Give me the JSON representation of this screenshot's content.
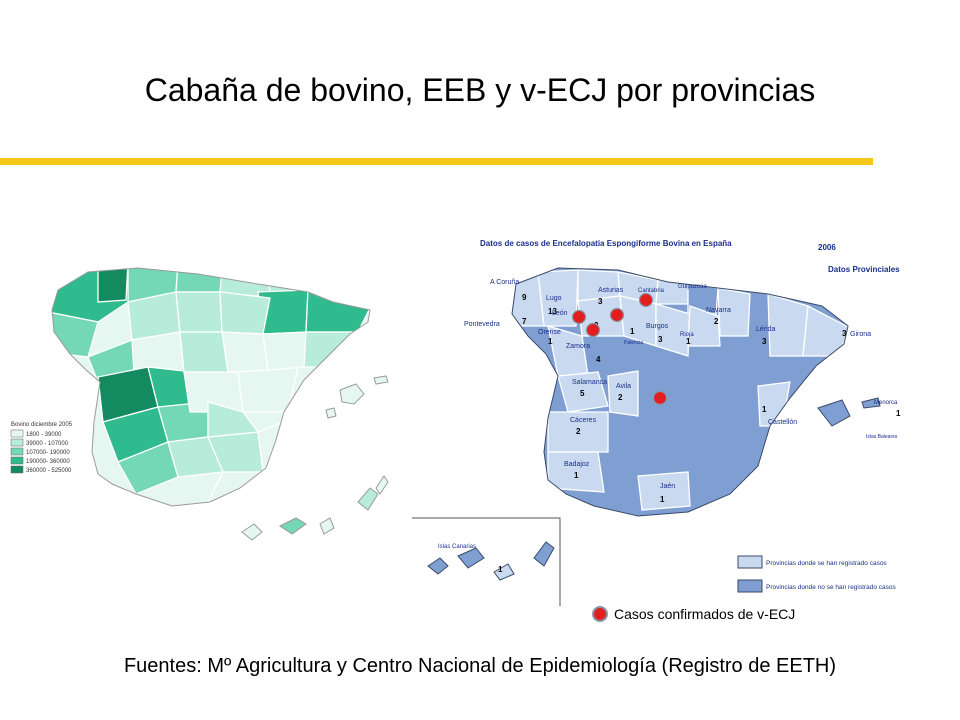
{
  "title": "Cabaña de bovino, EEB y v-ECJ por provincias",
  "left_map": {
    "legend_title": "Bovino diciembre 2005",
    "legend": [
      {
        "label": "1800 - 39000",
        "color": "#e6f7f1"
      },
      {
        "label": "39000 - 107000",
        "color": "#b6ecd9"
      },
      {
        "label": "107000- 190000",
        "color": "#74d8b6"
      },
      {
        "label": "190000- 360000",
        "color": "#2fbb8d"
      },
      {
        "label": "360000 - 525000",
        "color": "#138a60"
      }
    ]
  },
  "right_map": {
    "title": "Datos de casos de Encefalopatia Espongiforme Bovina en España",
    "year": "2006",
    "subtitle": "Datos Provinciales",
    "colors": {
      "with_cases": "#c9daf0",
      "without_cases": "#7f9fd3"
    },
    "labels": [
      {
        "text": "A Coruña"
      },
      {
        "text": "9"
      },
      {
        "text": "Lugo"
      },
      {
        "text": "13"
      },
      {
        "text": "Asturias"
      },
      {
        "text": "3"
      },
      {
        "text": "Cantabria"
      },
      {
        "text": "Guipuzcoa"
      },
      {
        "text": "Navarra"
      },
      {
        "text": "2"
      },
      {
        "text": "7"
      },
      {
        "text": "Pontevedra"
      },
      {
        "text": "León"
      },
      {
        "text": "2"
      },
      {
        "text": "Orense"
      },
      {
        "text": "1"
      },
      {
        "text": "Burgos"
      },
      {
        "text": "1"
      },
      {
        "text": "3"
      },
      {
        "text": "Palencia"
      },
      {
        "text": "Rioja"
      },
      {
        "text": "1"
      },
      {
        "text": "Lérida"
      },
      {
        "text": "3"
      },
      {
        "text": "3"
      },
      {
        "text": "Girona"
      },
      {
        "text": "Zamora"
      },
      {
        "text": "4"
      },
      {
        "text": "Salamanca"
      },
      {
        "text": "5"
      },
      {
        "text": "Avila"
      },
      {
        "text": "2"
      },
      {
        "text": "1"
      },
      {
        "text": "Castellón"
      },
      {
        "text": "Menorca"
      },
      {
        "text": "1"
      },
      {
        "text": "Islas Baleares"
      },
      {
        "text": "Cáceres"
      },
      {
        "text": "2"
      },
      {
        "text": "Badajoz"
      },
      {
        "text": "1"
      },
      {
        "text": "Jaén"
      },
      {
        "text": "1"
      },
      {
        "text": "Islas Canarias"
      },
      {
        "text": "1"
      }
    ],
    "legend": [
      {
        "label": "Provincias donde se han registrado casos"
      },
      {
        "label": "Provincias donde no se han registrado casos"
      }
    ],
    "vcjd_marker_count": 5
  },
  "vcjd_legend": "Casos confirmados de v-ECJ",
  "vcjd_color": "#e21f1f",
  "sources": "Fuentes: Mº Agricultura y Centro Nacional de Epidemiología (Registro de EETH)"
}
